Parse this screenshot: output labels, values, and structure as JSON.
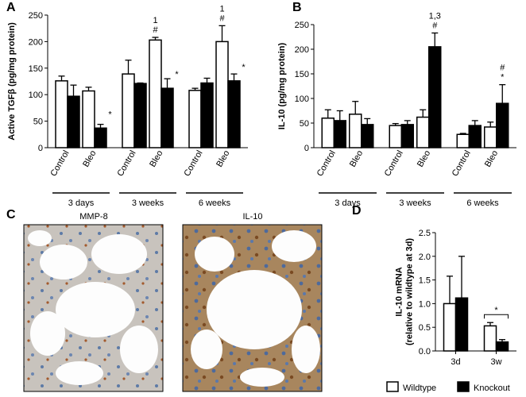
{
  "chart_data": [
    {
      "type": "bar",
      "panel": "A",
      "ylabel": [
        "Active TGFβ (pg/mg protein)"
      ],
      "categories": [
        "Control",
        "Bleo",
        "Control",
        "Bleo",
        "Control",
        "Bleo"
      ],
      "groups": [
        "3 days",
        "3 weeks",
        "6 weeks"
      ],
      "series": [
        {
          "color": "#ffffff",
          "values": [
            126,
            107,
            139,
            203,
            108,
            200
          ],
          "errors": [
            9,
            7,
            26,
            5,
            4,
            30
          ],
          "annotations": [
            null,
            null,
            null,
            [
              "1",
              "#"
            ],
            null,
            [
              "1",
              "#"
            ]
          ]
        },
        {
          "color": "#000000",
          "values": [
            97,
            37,
            121,
            112,
            122,
            126
          ],
          "errors": [
            21,
            7,
            1,
            18,
            9,
            13
          ],
          "annotations": [
            null,
            [
              "*"
            ],
            null,
            [
              "*"
            ],
            null,
            [
              "*"
            ]
          ]
        }
      ],
      "ylim": [
        0,
        250
      ],
      "yticks": [
        0,
        50,
        100,
        150,
        200,
        250
      ]
    },
    {
      "type": "bar",
      "panel": "B",
      "ylabel": [
        "IL-10 (pg/mg protein)"
      ],
      "categories": [
        "Control",
        "Bleo",
        "Control",
        "Bleo",
        "Control",
        "Bleo"
      ],
      "groups": [
        "3 days",
        "3 weeks",
        "6 weeks"
      ],
      "series": [
        {
          "color": "#ffffff",
          "values": [
            60,
            68,
            45,
            62,
            27,
            42
          ],
          "errors": [
            17,
            26,
            4,
            15,
            2,
            10
          ],
          "annotations": [
            null,
            null,
            null,
            null,
            null,
            null
          ]
        },
        {
          "color": "#000000",
          "values": [
            55,
            47,
            47,
            205,
            45,
            90
          ],
          "errors": [
            20,
            12,
            8,
            28,
            10,
            38
          ],
          "annotations": [
            null,
            null,
            null,
            [
              "1,3",
              "#"
            ],
            null,
            [
              "#",
              "*"
            ]
          ]
        }
      ],
      "ylim": [
        0,
        250
      ],
      "yticks": [
        0,
        50,
        100,
        150,
        200,
        250
      ]
    },
    {
      "type": "bar",
      "panel": "D",
      "ylabel": [
        "IL-10 mRNA",
        "(relative to wildtype at 3d)"
      ],
      "categories": [
        "3d",
        "3w"
      ],
      "annotations": [
        null,
        "*"
      ],
      "series": [
        {
          "name": "Wildtype",
          "color": "#ffffff",
          "values": [
            1.0,
            0.53
          ],
          "errors": [
            0.58,
            0.07
          ]
        },
        {
          "name": "Knockout",
          "color": "#000000",
          "values": [
            1.12,
            0.19
          ],
          "errors": [
            0.88,
            0.05
          ]
        }
      ],
      "ylim": [
        0,
        2.5
      ],
      "yticks": [
        {
          "value": 0,
          "label": "0.0"
        },
        0.5,
        {
          "value": 1,
          "label": "1.0"
        },
        1.5,
        {
          "value": 2,
          "label": "2.0"
        },
        2.5
      ]
    }
  ],
  "micrographs": {
    "panel": "C",
    "images": [
      {
        "label": "MMP-8"
      },
      {
        "label": "IL-10"
      }
    ]
  }
}
